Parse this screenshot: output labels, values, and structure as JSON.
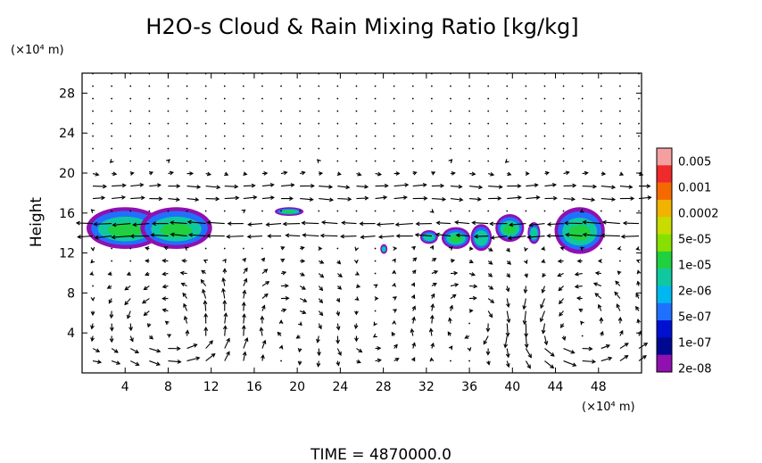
{
  "chart_data": {
    "type": "heatmap",
    "title": "H2O-s Cloud & Rain Mixing Ratio [kg/kg]",
    "ylabel": "Height",
    "y_unit": "(×10⁴ m)",
    "x_unit": "(×10⁴ m)",
    "xlabel": "",
    "xlim": [
      0,
      52
    ],
    "ylim": [
      0,
      30
    ],
    "x_ticks": [
      4,
      8,
      12,
      16,
      20,
      24,
      28,
      32,
      36,
      40,
      44,
      48
    ],
    "y_ticks": [
      4,
      8,
      12,
      16,
      20,
      24,
      28
    ],
    "grid": false,
    "colorbar": {
      "labels": [
        "0.005",
        "0.001",
        "0.0002",
        "5e-05",
        "1e-05",
        "2e-06",
        "5e-07",
        "1e-07",
        "2e-08"
      ],
      "colors": [
        "#f5a0a0",
        "#ee2a2a",
        "#f56a00",
        "#f0b400",
        "#c8dc00",
        "#88e000",
        "#20d040",
        "#10c8a0",
        "#00b8f0",
        "#2070ff",
        "#0010d0",
        "#000890",
        "#9010b0"
      ],
      "placement": "right"
    },
    "cloud_regions": [
      {
        "x": [
          0.5,
          7.5
        ],
        "y": [
          12.5,
          16.5
        ]
      },
      {
        "x": [
          5.5,
          12
        ],
        "y": [
          12.5,
          16.5
        ]
      },
      {
        "x": [
          18,
          20.5
        ],
        "y": [
          15.8,
          16.5
        ]
      },
      {
        "x": [
          27.8,
          28.3
        ],
        "y": [
          12,
          12.8
        ]
      },
      {
        "x": [
          31.5,
          33
        ],
        "y": [
          13,
          14.2
        ]
      },
      {
        "x": [
          33.5,
          36
        ],
        "y": [
          12.5,
          14.5
        ]
      },
      {
        "x": [
          36.2,
          38
        ],
        "y": [
          12.3,
          14.8
        ]
      },
      {
        "x": [
          38.5,
          41
        ],
        "y": [
          13.2,
          15.8
        ]
      },
      {
        "x": [
          41.5,
          42.5
        ],
        "y": [
          13,
          15
        ]
      },
      {
        "x": [
          44,
          48.5
        ],
        "y": [
          12,
          16.5
        ]
      }
    ],
    "wind_field_note": "Vector arrows show the flow; circulation cells near x≈8, 18-20, 46; strong horizontal flow near heights 14-19."
  },
  "footer": {
    "time_label": "TIME = 4870000.0"
  }
}
